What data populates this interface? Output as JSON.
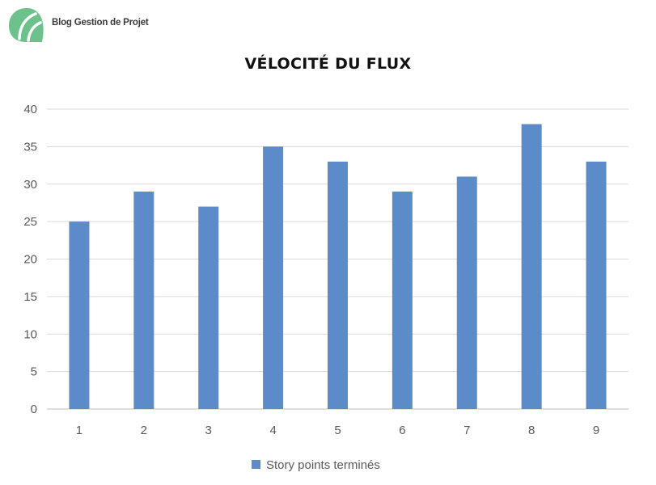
{
  "logo": {
    "text": "Blog Gestion de Projet",
    "colors": [
      "#6cc28a",
      "#8bd4a2"
    ]
  },
  "chart_data": {
    "type": "bar",
    "title": "VÉLOCITÉ DU FLUX",
    "xlabel": "",
    "ylabel": "",
    "categories": [
      "1",
      "2",
      "3",
      "4",
      "5",
      "6",
      "7",
      "8",
      "9"
    ],
    "series": [
      {
        "name": "Story points terminés",
        "values": [
          25,
          29,
          27,
          35,
          33,
          29,
          31,
          38,
          33
        ],
        "color": "#5b8bc9"
      }
    ],
    "ylim": [
      0,
      40
    ],
    "yticks": [
      "0",
      "5",
      "10",
      "15",
      "20",
      "25",
      "30",
      "35",
      "40"
    ],
    "grid": true,
    "legend_position": "bottom"
  }
}
